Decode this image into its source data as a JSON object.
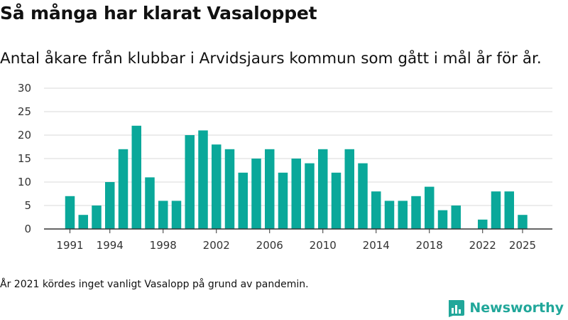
{
  "chart_data": {
    "type": "bar",
    "title": "Så många har klarat Vasaloppet",
    "subtitle": "Antal åkare från klubbar i Arvidsjaurs kommun som gått i mål år för år.",
    "xlabel": "",
    "ylabel": "",
    "ylim": [
      0,
      30
    ],
    "yticks": [
      0,
      5,
      10,
      15,
      20,
      25,
      30
    ],
    "xticks": [
      1991,
      1994,
      1998,
      2002,
      2006,
      2010,
      2014,
      2018,
      2022,
      2025
    ],
    "x": [
      1991,
      1992,
      1993,
      1994,
      1995,
      1996,
      1997,
      1998,
      1999,
      2000,
      2001,
      2002,
      2003,
      2004,
      2005,
      2006,
      2007,
      2008,
      2009,
      2010,
      2011,
      2012,
      2013,
      2014,
      2015,
      2016,
      2017,
      2018,
      2019,
      2020,
      2021,
      2022,
      2023,
      2024,
      2025
    ],
    "values": [
      7,
      3,
      5,
      10,
      17,
      22,
      11,
      6,
      6,
      20,
      21,
      18,
      17,
      12,
      15,
      17,
      12,
      15,
      14,
      17,
      12,
      17,
      14,
      8,
      6,
      6,
      7,
      9,
      4,
      5,
      0,
      2,
      8,
      8,
      3
    ],
    "grid": true,
    "color": "#0aa89a"
  },
  "footnote": "År 2021 kördes inget vanligt Vasalopp på grund av pandemin.",
  "brand": {
    "name": "Newsworthy",
    "icon": "newsworthy-logo-icon",
    "color": "#21a79a"
  }
}
